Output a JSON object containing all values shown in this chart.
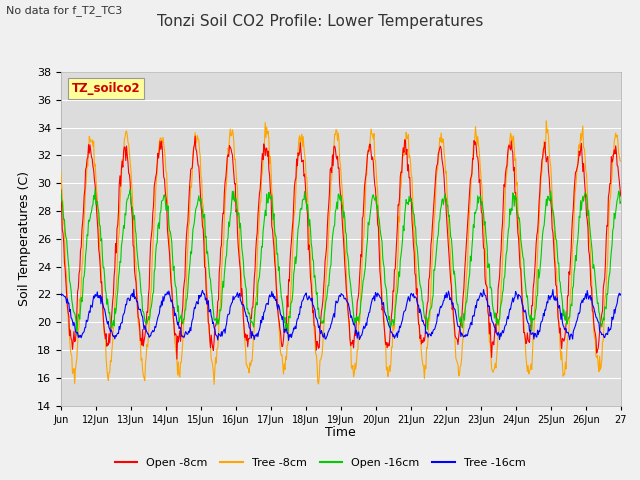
{
  "title": "Tonzi Soil CO2 Profile: Lower Temperatures",
  "subtitle": "No data for f_T2_TC3",
  "xlabel": "Time",
  "ylabel": "Soil Temperatures (C)",
  "ylim": [
    14,
    38
  ],
  "yticks": [
    14,
    16,
    18,
    20,
    22,
    24,
    26,
    28,
    30,
    32,
    34,
    36,
    38
  ],
  "xtick_labels": [
    "Jun",
    "12Jun",
    "13Jun",
    "14Jun",
    "15Jun",
    "16Jun",
    "17Jun",
    "18Jun",
    "19Jun",
    "20Jun",
    "21Jun",
    "22Jun",
    "23Jun",
    "24Jun",
    "25Jun",
    "26Jun",
    "27"
  ],
  "legend_labels": [
    "Open -8cm",
    "Tree -8cm",
    "Open -16cm",
    "Tree -16cm"
  ],
  "legend_colors": [
    "#ff0000",
    "#ffa500",
    "#00cc00",
    "#0000ff"
  ],
  "line_colors": {
    "open8": "#ff0000",
    "tree8": "#ffa500",
    "open16": "#00cc00",
    "tree16": "#0000ff"
  },
  "legend_box_color": "#ffff99",
  "legend_box_text": "TZ_soilco2",
  "fig_bg_color": "#f0f0f0",
  "plot_bg_color": "#dcdcdc",
  "grid_color": "#ffffff",
  "title_fontsize": 11,
  "axis_fontsize": 9,
  "tick_fontsize": 8,
  "subtitle_fontsize": 8
}
